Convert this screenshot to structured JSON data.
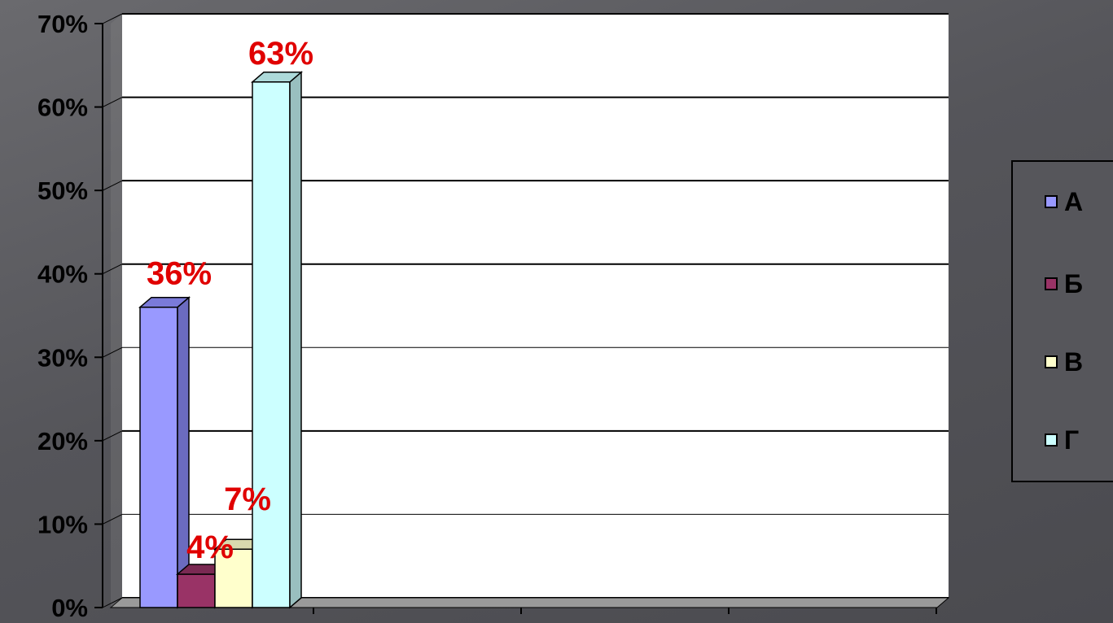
{
  "chart_data": {
    "type": "bar",
    "categories": [
      ""
    ],
    "series": [
      {
        "name": "А",
        "values": [
          36
        ],
        "label": "36%",
        "color": "#9999ff",
        "side_color": "#6b6bbf",
        "top_color": "#7a7ad9"
      },
      {
        "name": "Б",
        "values": [
          4
        ],
        "label": "4%",
        "color": "#993366",
        "side_color": "#6b2347",
        "top_color": "#7a2952"
      },
      {
        "name": "В",
        "values": [
          7
        ],
        "label": "7%",
        "color": "#ffffcc",
        "side_color": "#bfbf99",
        "top_color": "#d9d9ad"
      },
      {
        "name": "Г",
        "values": [
          63
        ],
        "label": "63%",
        "color": "#ccffff",
        "side_color": "#99bfbf",
        "top_color": "#addada"
      }
    ],
    "y_ticks": [
      "0%",
      "10%",
      "20%",
      "30%",
      "40%",
      "50%",
      "60%",
      "70%"
    ],
    "ylim": [
      0,
      70
    ],
    "y_unit": "%",
    "title": "",
    "xlabel": "",
    "ylabel": "",
    "grid": true,
    "legend_position": "right",
    "plot_background": "#ffffff",
    "label_color": "#e00000"
  }
}
